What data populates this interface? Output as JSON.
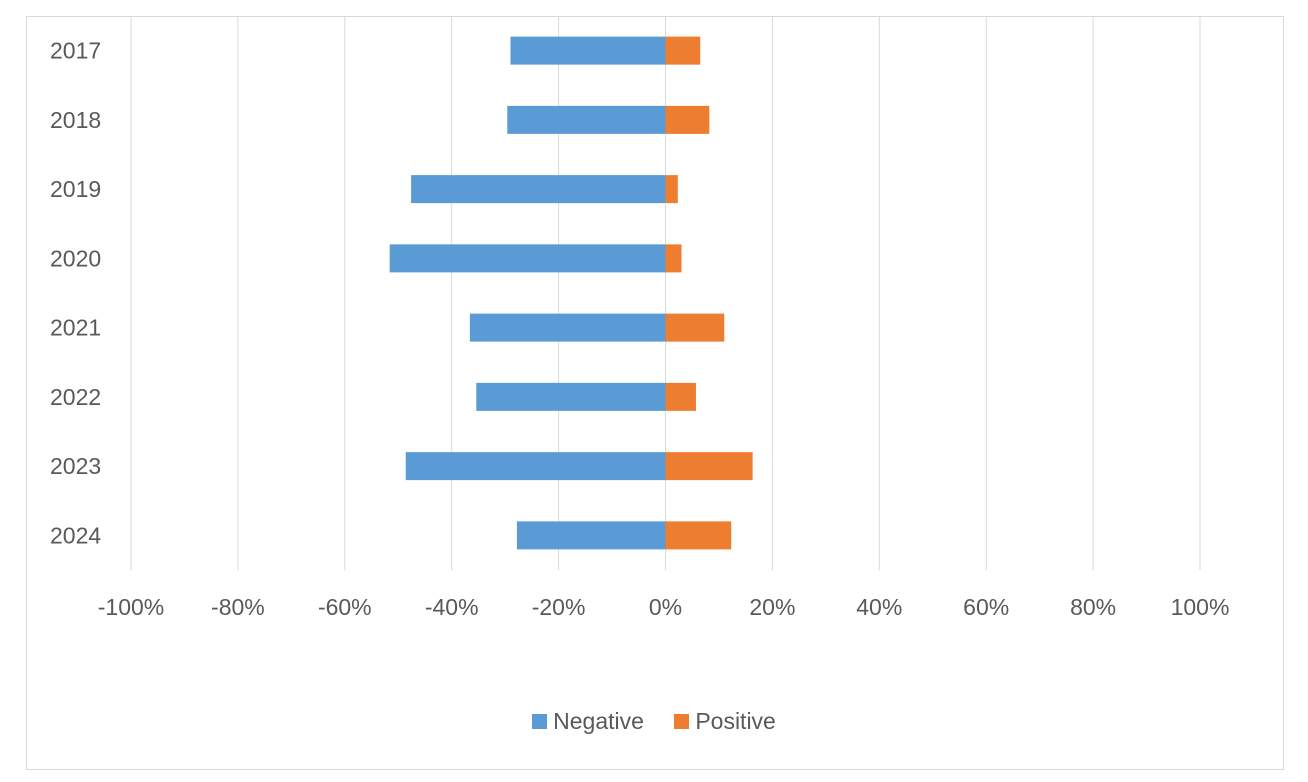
{
  "chart_data": {
    "type": "bar",
    "orientation": "horizontal",
    "stacked": true,
    "categories": [
      "2017",
      "2018",
      "2019",
      "2020",
      "2021",
      "2022",
      "2023",
      "2024"
    ],
    "series": [
      {
        "name": "Negative",
        "color": "#5b9bd5",
        "values": [
          -29,
          -29.6,
          -47.6,
          -51.6,
          -36.6,
          -35.4,
          -48.6,
          -27.8
        ]
      },
      {
        "name": "Positive",
        "color": "#ed7d31",
        "values": [
          6.5,
          8.2,
          2.3,
          3,
          11,
          5.7,
          16.3,
          12.3
        ]
      }
    ],
    "xlim": [
      -100,
      100
    ],
    "xticks": [
      "-100%",
      "-80%",
      "-60%",
      "-40%",
      "-20%",
      "0%",
      "20%",
      "40%",
      "60%",
      "80%",
      "100%"
    ],
    "grid": true,
    "legend_position": "bottom",
    "title": "",
    "xlabel": "",
    "ylabel": ""
  }
}
